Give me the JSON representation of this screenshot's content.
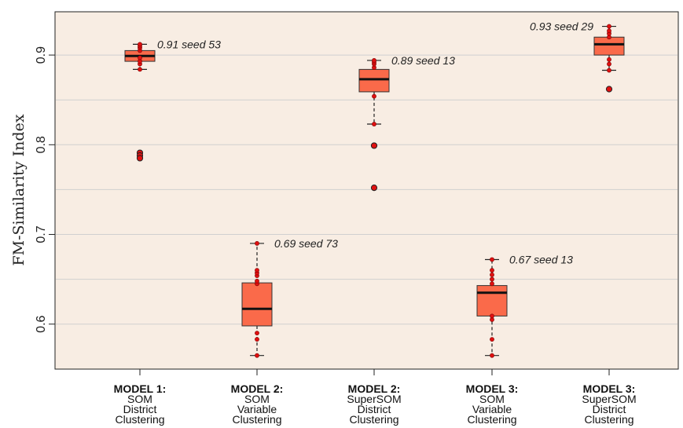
{
  "chart_data": {
    "type": "box",
    "ylabel": "FM-Similarity Index",
    "ylim": [
      0.55,
      0.95
    ],
    "yticks": [
      0.6,
      0.7,
      0.8,
      0.9
    ],
    "ytick_labels": [
      "0.6",
      "0.7",
      "0.8",
      "0.9"
    ],
    "grid": true,
    "colors": {
      "panel": "#f8ede3",
      "box": "#fa6a4a",
      "point": "#e01010",
      "median": "#111111",
      "grid": "#d0d0d0"
    },
    "categories": [
      {
        "lines": [
          "MODEL 1:",
          "SOM",
          "District",
          "Clustering"
        ]
      },
      {
        "lines": [
          "MODEL 2:",
          "SOM",
          "Variable",
          "Clustering"
        ]
      },
      {
        "lines": [
          "MODEL 2:",
          "SuperSOM",
          "District",
          "Clustering"
        ]
      },
      {
        "lines": [
          "MODEL 3:",
          "SOM",
          "Variable",
          "Clustering"
        ]
      },
      {
        "lines": [
          "MODEL 3:",
          "SuperSOM",
          "District",
          "Clustering"
        ]
      }
    ],
    "boxes": [
      {
        "whisker_low": 0.884,
        "q1": 0.893,
        "median": 0.899,
        "q3": 0.905,
        "whisker_high": 0.912,
        "outliers": [
          0.791,
          0.788,
          0.785
        ],
        "annotation": "0.91 seed 53",
        "points": [
          0.884,
          0.89,
          0.893,
          0.897,
          0.905,
          0.908,
          0.91,
          0.912
        ]
      },
      {
        "whisker_low": 0.565,
        "q1": 0.598,
        "median": 0.617,
        "q3": 0.646,
        "whisker_high": 0.69,
        "outliers": [],
        "annotation": "0.69 seed 73",
        "points": [
          0.565,
          0.583,
          0.59,
          0.645,
          0.648,
          0.654,
          0.657,
          0.66,
          0.69
        ]
      },
      {
        "whisker_low": 0.823,
        "q1": 0.859,
        "median": 0.873,
        "q3": 0.884,
        "whisker_high": 0.894,
        "outliers": [
          0.799,
          0.752
        ],
        "annotation": "0.89 seed 13",
        "points": [
          0.823,
          0.854,
          0.886,
          0.89,
          0.892,
          0.894
        ]
      },
      {
        "whisker_low": 0.565,
        "q1": 0.609,
        "median": 0.635,
        "q3": 0.643,
        "whisker_high": 0.672,
        "outliers": [],
        "annotation": "0.67 seed 13",
        "points": [
          0.565,
          0.583,
          0.605,
          0.609,
          0.645,
          0.65,
          0.655,
          0.66,
          0.672
        ]
      },
      {
        "whisker_low": 0.883,
        "q1": 0.9,
        "median": 0.912,
        "q3": 0.92,
        "whisker_high": 0.932,
        "outliers": [
          0.862
        ],
        "annotation": "0.93 seed 29",
        "points": [
          0.883,
          0.89,
          0.895,
          0.92,
          0.924,
          0.927,
          0.932
        ]
      }
    ]
  }
}
